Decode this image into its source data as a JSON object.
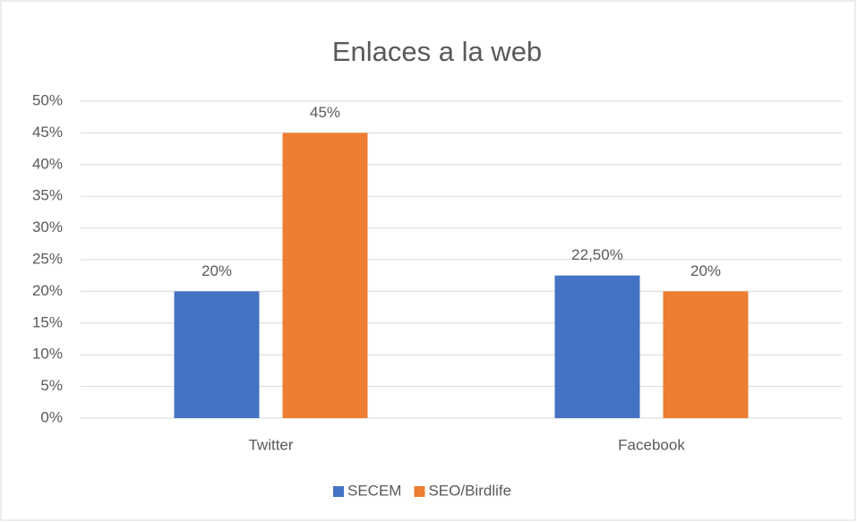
{
  "chart_data": {
    "type": "bar",
    "title": "Enlaces a la web",
    "categories": [
      "Twitter",
      "Facebook"
    ],
    "series": [
      {
        "name": "SECEM",
        "color": "#4472c4",
        "values": [
          20,
          22.5
        ],
        "value_labels": [
          "20%",
          "22,50%"
        ]
      },
      {
        "name": "SEO/Birdlife",
        "color": "#ed7d31",
        "values": [
          45,
          20
        ],
        "value_labels": [
          "45%",
          "20%"
        ]
      }
    ],
    "ylim": [
      0,
      50
    ],
    "yticks": [
      {
        "value": 0,
        "label": "0%"
      },
      {
        "value": 5,
        "label": "5%"
      },
      {
        "value": 10,
        "label": "10%"
      },
      {
        "value": 15,
        "label": "15%"
      },
      {
        "value": 20,
        "label": "20%"
      },
      {
        "value": 25,
        "label": "25%"
      },
      {
        "value": 30,
        "label": "30%"
      },
      {
        "value": 35,
        "label": "35%"
      },
      {
        "value": 40,
        "label": "40%"
      },
      {
        "value": 45,
        "label": "45%"
      },
      {
        "value": 50,
        "label": "50%"
      }
    ],
    "grid": true,
    "legend": "bottom"
  }
}
